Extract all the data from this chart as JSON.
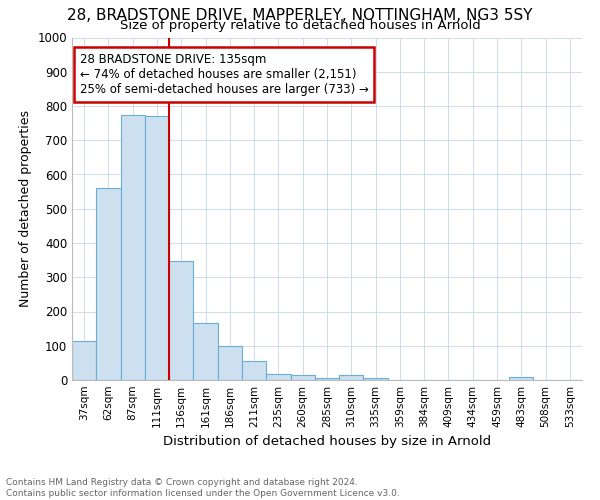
{
  "title": "28, BRADSTONE DRIVE, MAPPERLEY, NOTTINGHAM, NG3 5SY",
  "subtitle": "Size of property relative to detached houses in Arnold",
  "xlabel": "Distribution of detached houses by size in Arnold",
  "ylabel": "Number of detached properties",
  "categories": [
    "37sqm",
    "62sqm",
    "87sqm",
    "111sqm",
    "136sqm",
    "161sqm",
    "186sqm",
    "211sqm",
    "235sqm",
    "260sqm",
    "285sqm",
    "310sqm",
    "335sqm",
    "359sqm",
    "384sqm",
    "409sqm",
    "434sqm",
    "459sqm",
    "483sqm",
    "508sqm",
    "533sqm"
  ],
  "values": [
    113,
    560,
    775,
    770,
    348,
    165,
    98,
    55,
    18,
    15,
    5,
    15,
    5,
    0,
    0,
    0,
    0,
    0,
    10,
    0,
    0
  ],
  "bar_color": "#cce0f0",
  "bar_edge_color": "#6aaed6",
  "marker_line_color": "#cc0000",
  "annotation_title": "28 BRADSTONE DRIVE: 135sqm",
  "annotation_line1": "← 74% of detached houses are smaller (2,151)",
  "annotation_line2": "25% of semi-detached houses are larger (733) →",
  "annotation_box_color": "#cc0000",
  "ylim": [
    0,
    1000
  ],
  "yticks": [
    0,
    100,
    200,
    300,
    400,
    500,
    600,
    700,
    800,
    900,
    1000
  ],
  "footer_line1": "Contains HM Land Registry data © Crown copyright and database right 2024.",
  "footer_line2": "Contains public sector information licensed under the Open Government Licence v3.0.",
  "bg_color": "#ffffff",
  "grid_color": "#c8d8e8",
  "title_fontsize": 11,
  "subtitle_fontsize": 9.5
}
